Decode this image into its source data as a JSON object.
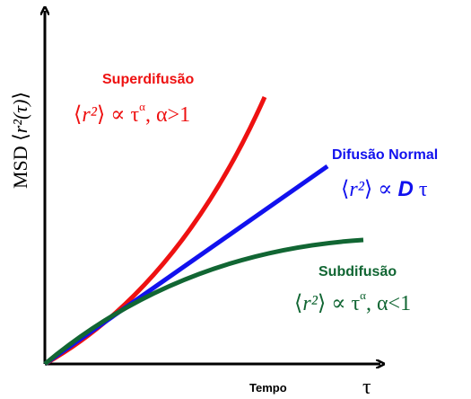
{
  "y_axis_label": [
    "MSD ",
    "⟨",
    "r²(τ)",
    "⟩"
  ],
  "x_axis_label": {
    "word": "Tempo",
    "symbol": "τ"
  },
  "curves": [
    {
      "name": "Superdifusão",
      "formula": [
        "⟨",
        "r²",
        "⟩ ∝ τ",
        "α",
        ",  α>1"
      ]
    },
    {
      "name": "Difusão Normal",
      "formula": [
        "⟨",
        "r²",
        "⟩ ∝ ",
        "D",
        " τ"
      ]
    },
    {
      "name": "Subdifusão",
      "formula": [
        "⟨",
        "r²",
        "⟩ ∝ τ",
        "α",
        ",  α<1"
      ]
    }
  ]
}
